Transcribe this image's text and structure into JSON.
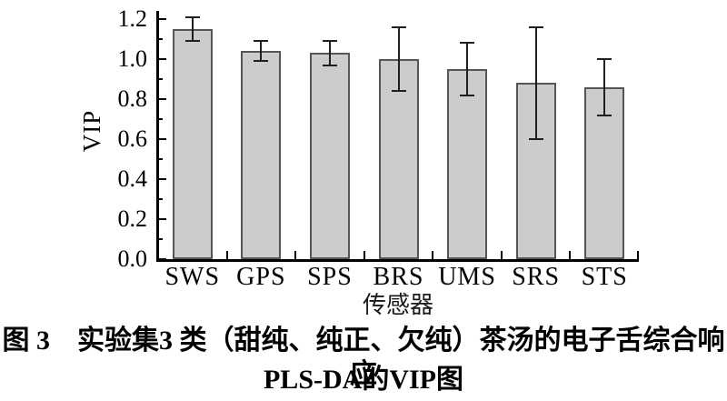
{
  "figure": {
    "caption_line1": "图 3　实验集3 类（甜纯、纯正、欠纯）茶汤的电子舌综合响应",
    "caption_line2": "PLS-DA的VIP图"
  },
  "chart_data": {
    "type": "bar",
    "title": "",
    "categories": [
      "SWS",
      "GPS",
      "SPS",
      "BRS",
      "UMS",
      "SRS",
      "STS"
    ],
    "values": [
      1.15,
      1.04,
      1.03,
      1.0,
      0.95,
      0.88,
      0.86
    ],
    "errors": [
      0.06,
      0.05,
      0.06,
      0.16,
      0.13,
      0.28,
      0.14
    ],
    "xlabel": "传感器",
    "ylabel": "VIP",
    "ylim": [
      0.0,
      1.2
    ],
    "ytick_step": 0.2,
    "ytick_minor_step": 0.1,
    "grid": false,
    "legend": "none",
    "colors": {
      "bar_fill": "#cccccc",
      "bar_border": "#55555a",
      "errorbar": "#1f1f1f",
      "axis": "#000000"
    }
  }
}
